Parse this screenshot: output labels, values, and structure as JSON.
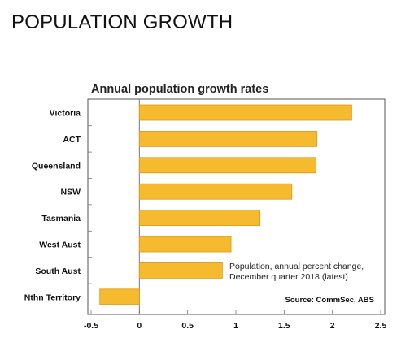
{
  "page": {
    "heading": "POPULATION GROWTH"
  },
  "chart_data": {
    "type": "bar",
    "orientation": "horizontal",
    "title": "Annual population growth rates",
    "categories": [
      "Victoria",
      "ACT",
      "Queensland",
      "NSW",
      "Tasmania",
      "West Aust",
      "South Aust",
      "Nthn Territory"
    ],
    "values": [
      2.2,
      1.84,
      1.83,
      1.58,
      1.25,
      0.95,
      0.86,
      -0.41
    ],
    "xlim": [
      -0.5,
      2.5
    ],
    "x_ticks": [
      "-0.5",
      "0",
      "0.5",
      "1",
      "1.5",
      "2",
      "2.5"
    ],
    "xlabel": "",
    "ylabel": "",
    "grid": false,
    "bar_color": "#F6BA2F",
    "bar_outline": "#D99A1A",
    "annotation": "Population, annual percent change, December quarter 2018 (latest)",
    "annotation_lines": [
      "Population, annual percent change,",
      "December quarter 2018 (latest)"
    ],
    "source": "Source: CommSec, ABS"
  }
}
